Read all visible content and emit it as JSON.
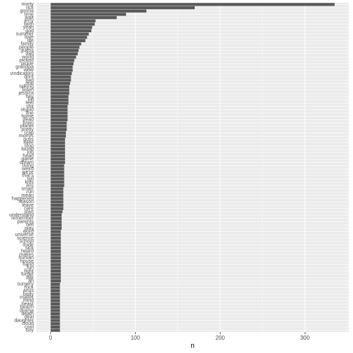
{
  "chart_data": {
    "type": "barh",
    "x_label": "n",
    "categories": [
      "morty",
      "rick",
      "gonna",
      "time",
      "wait",
      "jerry",
      "beth",
      "yeah",
      "god",
      "summer",
      "love",
      "life",
      "family",
      "people",
      "guess",
      "dad",
      "world",
      "picked",
      "pickle",
      "grandpa",
      "wow",
      "vindicators",
      "dont",
      "bad",
      "real",
      "talking",
      "listen",
      "jessica",
      "hey",
      "kill",
      "feel",
      "shit",
      "stupid",
      "fine",
      "home",
      "dead",
      "brain",
      "planet",
      "pretty",
      "crap",
      "mortys",
      "guys",
      "save",
      "stop",
      "found",
      "job",
      "head",
      "game",
      "dream",
      "living",
      "weird",
      "we're",
      "that's",
      "tell",
      "kids",
      "ass",
      "smart",
      "run",
      "mean",
      "happened",
      "reason",
      "leave",
      "care",
      "start",
      "understand",
      "remember",
      "parents",
      "hell",
      "play",
      "word",
      "universe",
      "science",
      "school",
      "dude",
      "sick",
      "heard",
      "makes",
      "human",
      "house",
      "hand",
      "fun",
      "fight",
      "forget",
      "talk",
      "ah",
      "surgery",
      "rock",
      "anus",
      "body",
      "matter",
      "mind",
      "beast",
      "beach",
      "drama",
      "death",
      "deal",
      "daughter",
      "cloud",
      "cool",
      "boy"
    ],
    "values": [
      335,
      170,
      113,
      89,
      78,
      53,
      52,
      49,
      48,
      45,
      43,
      41,
      36,
      34,
      33,
      32,
      30,
      28,
      27,
      26,
      26,
      25,
      24,
      24,
      23,
      22,
      22,
      22,
      21,
      21,
      21,
      20,
      20,
      20,
      20,
      20,
      19,
      19,
      19,
      18,
      18,
      17,
      17,
      17,
      17,
      17,
      17,
      17,
      17,
      16,
      16,
      16,
      16,
      16,
      16,
      16,
      15,
      15,
      15,
      15,
      15,
      15,
      15,
      14,
      13,
      13,
      13,
      13,
      13,
      12,
      12,
      12,
      12,
      12,
      12,
      12,
      12,
      12,
      12,
      12,
      12,
      12,
      12,
      12,
      12,
      11,
      11,
      11,
      11,
      11,
      11,
      11,
      11,
      11,
      11,
      11,
      11,
      11,
      11,
      11
    ],
    "color": "#595959",
    "xlim": [
      -16.75,
      351.75
    ],
    "xticks": [
      0,
      100,
      200,
      300
    ],
    "x_minor_grid": [
      50,
      150,
      250,
      350
    ],
    "grid": true
  }
}
